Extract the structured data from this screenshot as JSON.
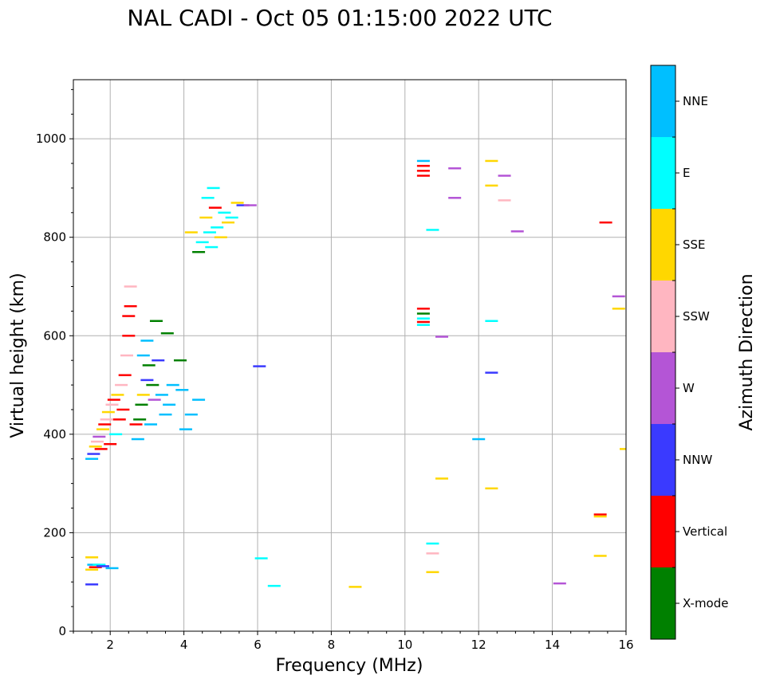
{
  "chart_data": {
    "type": "scatter",
    "title": "NAL CADI - Oct 05 01:15:00 2022 UTC",
    "xlabel": "Frequency (MHz)",
    "ylabel": "Virtual height (km)",
    "xlim": [
      1,
      16
    ],
    "ylim": [
      0,
      1120
    ],
    "xticks": [
      2,
      4,
      6,
      8,
      10,
      12,
      14,
      16
    ],
    "yticks": [
      0,
      200,
      400,
      600,
      800,
      1000
    ],
    "grid": true,
    "colorbar": {
      "label": "Azimuth Direction",
      "categories": [
        {
          "name": "X-mode",
          "color": "#008000"
        },
        {
          "name": "Vertical",
          "color": "#ff0000"
        },
        {
          "name": "NNW",
          "color": "#3a3aff"
        },
        {
          "name": "W",
          "color": "#b455d6"
        },
        {
          "name": "SSW",
          "color": "#ffb6c1"
        },
        {
          "name": "SSE",
          "color": "#ffd700"
        },
        {
          "name": "E",
          "color": "#00ffff"
        },
        {
          "name": "NNE",
          "color": "#00bfff"
        }
      ]
    },
    "points": [
      {
        "f": 1.5,
        "h": 95,
        "c": "NNW"
      },
      {
        "f": 1.5,
        "h": 125,
        "c": "SSE"
      },
      {
        "f": 1.55,
        "h": 135,
        "c": "NNE"
      },
      {
        "f": 1.6,
        "h": 130,
        "c": "Vertical"
      },
      {
        "f": 1.7,
        "h": 135,
        "c": "E"
      },
      {
        "f": 1.8,
        "h": 132,
        "c": "NNW"
      },
      {
        "f": 1.5,
        "h": 150,
        "c": "SSE"
      },
      {
        "f": 2.05,
        "h": 128,
        "c": "NNE"
      },
      {
        "f": 1.5,
        "h": 350,
        "c": "NNE"
      },
      {
        "f": 1.55,
        "h": 360,
        "c": "NNW"
      },
      {
        "f": 1.6,
        "h": 375,
        "c": "SSE"
      },
      {
        "f": 1.65,
        "h": 385,
        "c": "SSW"
      },
      {
        "f": 1.7,
        "h": 395,
        "c": "W"
      },
      {
        "f": 1.75,
        "h": 370,
        "c": "Vertical"
      },
      {
        "f": 1.8,
        "h": 410,
        "c": "SSE"
      },
      {
        "f": 1.85,
        "h": 420,
        "c": "Vertical"
      },
      {
        "f": 1.9,
        "h": 430,
        "c": "SSW"
      },
      {
        "f": 1.95,
        "h": 445,
        "c": "SSE"
      },
      {
        "f": 2.0,
        "h": 380,
        "c": "Vertical"
      },
      {
        "f": 2.05,
        "h": 460,
        "c": "SSW"
      },
      {
        "f": 2.1,
        "h": 470,
        "c": "Vertical"
      },
      {
        "f": 2.15,
        "h": 400,
        "c": "E"
      },
      {
        "f": 2.2,
        "h": 480,
        "c": "SSE"
      },
      {
        "f": 2.25,
        "h": 430,
        "c": "Vertical"
      },
      {
        "f": 2.3,
        "h": 500,
        "c": "SSW"
      },
      {
        "f": 2.35,
        "h": 450,
        "c": "Vertical"
      },
      {
        "f": 2.4,
        "h": 520,
        "c": "Vertical"
      },
      {
        "f": 2.45,
        "h": 560,
        "c": "SSW"
      },
      {
        "f": 2.5,
        "h": 600,
        "c": "Vertical"
      },
      {
        "f": 2.55,
        "h": 660,
        "c": "Vertical"
      },
      {
        "f": 2.55,
        "h": 700,
        "c": "SSW"
      },
      {
        "f": 2.5,
        "h": 640,
        "c": "Vertical"
      },
      {
        "f": 2.7,
        "h": 420,
        "c": "Vertical"
      },
      {
        "f": 2.75,
        "h": 390,
        "c": "NNE"
      },
      {
        "f": 2.8,
        "h": 430,
        "c": "X-mode"
      },
      {
        "f": 2.85,
        "h": 460,
        "c": "X-mode"
      },
      {
        "f": 2.9,
        "h": 480,
        "c": "SSE"
      },
      {
        "f": 3.0,
        "h": 510,
        "c": "NNW"
      },
      {
        "f": 3.05,
        "h": 540,
        "c": "X-mode"
      },
      {
        "f": 3.1,
        "h": 420,
        "c": "NNE"
      },
      {
        "f": 3.15,
        "h": 500,
        "c": "X-mode"
      },
      {
        "f": 3.2,
        "h": 470,
        "c": "W"
      },
      {
        "f": 3.25,
        "h": 630,
        "c": "X-mode"
      },
      {
        "f": 3.3,
        "h": 550,
        "c": "NNW"
      },
      {
        "f": 3.4,
        "h": 480,
        "c": "NNE"
      },
      {
        "f": 3.5,
        "h": 440,
        "c": "NNE"
      },
      {
        "f": 3.55,
        "h": 605,
        "c": "X-mode"
      },
      {
        "f": 3.6,
        "h": 460,
        "c": "NNE"
      },
      {
        "f": 3.7,
        "h": 500,
        "c": "NNE"
      },
      {
        "f": 3.9,
        "h": 550,
        "c": "X-mode"
      },
      {
        "f": 3.95,
        "h": 490,
        "c": "NNE"
      },
      {
        "f": 4.05,
        "h": 410,
        "c": "NNE"
      },
      {
        "f": 4.2,
        "h": 440,
        "c": "NNE"
      },
      {
        "f": 4.4,
        "h": 470,
        "c": "NNE"
      },
      {
        "f": 3.0,
        "h": 590,
        "c": "NNE"
      },
      {
        "f": 2.9,
        "h": 560,
        "c": "NNE"
      },
      {
        "f": 4.2,
        "h": 810,
        "c": "SSE"
      },
      {
        "f": 4.4,
        "h": 770,
        "c": "X-mode"
      },
      {
        "f": 4.5,
        "h": 790,
        "c": "E"
      },
      {
        "f": 4.6,
        "h": 840,
        "c": "SSE"
      },
      {
        "f": 4.65,
        "h": 880,
        "c": "E"
      },
      {
        "f": 4.7,
        "h": 810,
        "c": "E"
      },
      {
        "f": 4.8,
        "h": 900,
        "c": "E"
      },
      {
        "f": 4.85,
        "h": 860,
        "c": "Vertical"
      },
      {
        "f": 4.9,
        "h": 820,
        "c": "E"
      },
      {
        "f": 5.0,
        "h": 800,
        "c": "SSE"
      },
      {
        "f": 5.1,
        "h": 850,
        "c": "E"
      },
      {
        "f": 5.2,
        "h": 830,
        "c": "SSE"
      },
      {
        "f": 5.3,
        "h": 840,
        "c": "E"
      },
      {
        "f": 5.45,
        "h": 870,
        "c": "SSE"
      },
      {
        "f": 5.6,
        "h": 865,
        "c": "NNW"
      },
      {
        "f": 5.8,
        "h": 865,
        "c": "W"
      },
      {
        "f": 4.75,
        "h": 780,
        "c": "E"
      },
      {
        "f": 6.05,
        "h": 538,
        "c": "NNW"
      },
      {
        "f": 6.1,
        "h": 148,
        "c": "E"
      },
      {
        "f": 6.45,
        "h": 92,
        "c": "E"
      },
      {
        "f": 8.65,
        "h": 90,
        "c": "SSE"
      },
      {
        "f": 10.5,
        "h": 955,
        "c": "NNE"
      },
      {
        "f": 10.5,
        "h": 945,
        "c": "Vertical"
      },
      {
        "f": 10.5,
        "h": 935,
        "c": "Vertical"
      },
      {
        "f": 10.5,
        "h": 925,
        "c": "Vertical"
      },
      {
        "f": 10.5,
        "h": 655,
        "c": "Vertical"
      },
      {
        "f": 10.5,
        "h": 645,
        "c": "X-mode"
      },
      {
        "f": 10.5,
        "h": 635,
        "c": "E"
      },
      {
        "f": 10.5,
        "h": 628,
        "c": "Vertical"
      },
      {
        "f": 10.5,
        "h": 622,
        "c": "E"
      },
      {
        "f": 10.75,
        "h": 815,
        "c": "E"
      },
      {
        "f": 10.75,
        "h": 178,
        "c": "E"
      },
      {
        "f": 10.75,
        "h": 158,
        "c": "SSW"
      },
      {
        "f": 10.75,
        "h": 120,
        "c": "SSE"
      },
      {
        "f": 11.0,
        "h": 310,
        "c": "SSE"
      },
      {
        "f": 11.0,
        "h": 598,
        "c": "W"
      },
      {
        "f": 11.35,
        "h": 940,
        "c": "W"
      },
      {
        "f": 11.35,
        "h": 880,
        "c": "W"
      },
      {
        "f": 12.0,
        "h": 390,
        "c": "NNE"
      },
      {
        "f": 12.35,
        "h": 955,
        "c": "SSE"
      },
      {
        "f": 12.35,
        "h": 905,
        "c": "SSE"
      },
      {
        "f": 12.35,
        "h": 630,
        "c": "E"
      },
      {
        "f": 12.35,
        "h": 525,
        "c": "NNW"
      },
      {
        "f": 12.35,
        "h": 290,
        "c": "SSE"
      },
      {
        "f": 12.7,
        "h": 925,
        "c": "W"
      },
      {
        "f": 12.7,
        "h": 875,
        "c": "SSW"
      },
      {
        "f": 13.05,
        "h": 812,
        "c": "W"
      },
      {
        "f": 14.2,
        "h": 97,
        "c": "W"
      },
      {
        "f": 15.45,
        "h": 830,
        "c": "Vertical"
      },
      {
        "f": 15.3,
        "h": 237,
        "c": "Vertical"
      },
      {
        "f": 15.3,
        "h": 233,
        "c": "SSE"
      },
      {
        "f": 15.3,
        "h": 153,
        "c": "SSE"
      },
      {
        "f": 15.8,
        "h": 680,
        "c": "W"
      },
      {
        "f": 15.8,
        "h": 655,
        "c": "SSE"
      },
      {
        "f": 16.0,
        "h": 370,
        "c": "SSE"
      }
    ]
  }
}
